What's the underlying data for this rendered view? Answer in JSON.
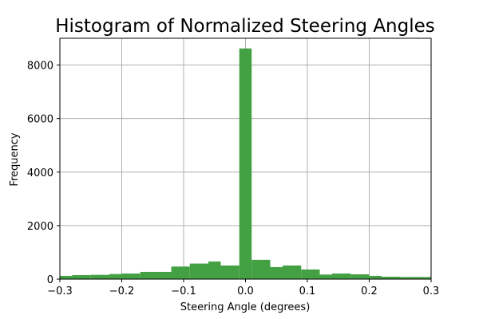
{
  "chart_data": {
    "type": "bar",
    "title": "Histogram of Normalized Steering Angles",
    "xlabel": "Steering Angle (degrees)",
    "ylabel": "Frequency",
    "xlim": [
      -0.3,
      0.3
    ],
    "ylim": [
      0,
      9000
    ],
    "xticks": [
      -0.3,
      -0.2,
      -0.1,
      0.0,
      0.1,
      0.2,
      0.3
    ],
    "xtick_labels": [
      "−0.3",
      "−0.2",
      "−0.1",
      "0.0",
      "0.1",
      "0.2",
      "0.3"
    ],
    "yticks": [
      0,
      2000,
      4000,
      6000,
      8000
    ],
    "ytick_labels": [
      "0",
      "2000",
      "4000",
      "6000",
      "8000"
    ],
    "grid": true,
    "bar_color": "#43a043",
    "bins": [
      {
        "x0": -0.3,
        "x1": -0.28,
        "count": 120
      },
      {
        "x0": -0.28,
        "x1": -0.25,
        "count": 150
      },
      {
        "x0": -0.25,
        "x1": -0.22,
        "count": 160
      },
      {
        "x0": -0.22,
        "x1": -0.2,
        "count": 190
      },
      {
        "x0": -0.2,
        "x1": -0.17,
        "count": 210
      },
      {
        "x0": -0.17,
        "x1": -0.14,
        "count": 270
      },
      {
        "x0": -0.14,
        "x1": -0.12,
        "count": 270
      },
      {
        "x0": -0.12,
        "x1": -0.09,
        "count": 470
      },
      {
        "x0": -0.09,
        "x1": -0.06,
        "count": 580
      },
      {
        "x0": -0.06,
        "x1": -0.04,
        "count": 660
      },
      {
        "x0": -0.04,
        "x1": -0.01,
        "count": 510
      },
      {
        "x0": -0.01,
        "x1": 0.01,
        "count": 8620
      },
      {
        "x0": 0.01,
        "x1": 0.04,
        "count": 720
      },
      {
        "x0": 0.04,
        "x1": 0.06,
        "count": 450
      },
      {
        "x0": 0.06,
        "x1": 0.09,
        "count": 510
      },
      {
        "x0": 0.09,
        "x1": 0.12,
        "count": 360
      },
      {
        "x0": 0.12,
        "x1": 0.14,
        "count": 170
      },
      {
        "x0": 0.14,
        "x1": 0.17,
        "count": 210
      },
      {
        "x0": 0.17,
        "x1": 0.2,
        "count": 180
      },
      {
        "x0": 0.2,
        "x1": 0.22,
        "count": 120
      },
      {
        "x0": 0.22,
        "x1": 0.25,
        "count": 90
      },
      {
        "x0": 0.25,
        "x1": 0.28,
        "count": 80
      },
      {
        "x0": 0.28,
        "x1": 0.3,
        "count": 80
      }
    ]
  }
}
